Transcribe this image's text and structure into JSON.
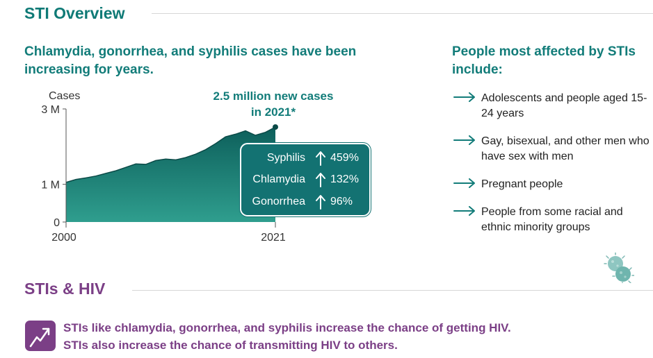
{
  "sti_overview": {
    "title": "STI Overview",
    "chart_heading": "Chlamydia, gonorrhea, and syphilis cases have been increasing for years.",
    "callout_line1": "2.5 million new cases",
    "callout_line2": "in 2021*",
    "stats": [
      {
        "name": "Syphilis",
        "change": "459%"
      },
      {
        "name": "Chlamydia",
        "change": "132%"
      },
      {
        "name": "Gonorrhea",
        "change": "96%"
      }
    ]
  },
  "chart_data": {
    "type": "area",
    "title": "",
    "xlabel": "",
    "ylabel": "Cases",
    "x": [
      2000,
      2001,
      2002,
      2003,
      2004,
      2005,
      2006,
      2007,
      2008,
      2009,
      2010,
      2011,
      2012,
      2013,
      2014,
      2015,
      2016,
      2017,
      2018,
      2019,
      2020,
      2021
    ],
    "values": [
      1.05,
      1.13,
      1.17,
      1.22,
      1.29,
      1.36,
      1.45,
      1.54,
      1.53,
      1.63,
      1.67,
      1.65,
      1.71,
      1.8,
      1.92,
      2.08,
      2.26,
      2.33,
      2.42,
      2.3,
      2.38,
      2.52
    ],
    "xlim": [
      2000,
      2021
    ],
    "ylim": [
      0,
      3
    ],
    "yticks": [
      {
        "value": 3,
        "label": "3 M"
      },
      {
        "value": 1,
        "label": "1 M"
      },
      {
        "value": 0,
        "label": "0"
      }
    ],
    "xticks": [
      {
        "value": 2000,
        "label": "2000"
      },
      {
        "value": 2021,
        "label": "2021"
      }
    ],
    "grid": false,
    "colors": {
      "fill_top": "#0d5f5b",
      "fill_bottom": "#2f9e8e",
      "line": "#0b4a47",
      "axis": "#555555"
    }
  },
  "affected": {
    "heading": "People most affected by STIs include:",
    "items": [
      "Adolescents and people aged 15-24 years",
      "Gay, bisexual, and other men who have sex with men",
      "Pregnant people",
      "People from some racial and ethnic minority groups"
    ]
  },
  "hiv": {
    "title": "STIs & HIV",
    "line1": "STIs like chlamydia, gonorrhea, and syphilis increase the chance of getting HIV.",
    "line2": "STIs also increase the chance of transmitting HIV to others.",
    "icon": "trend-up-icon"
  },
  "colors": {
    "teal": "#0f7a76",
    "purple": "#7b3f86",
    "box": "#137272"
  }
}
